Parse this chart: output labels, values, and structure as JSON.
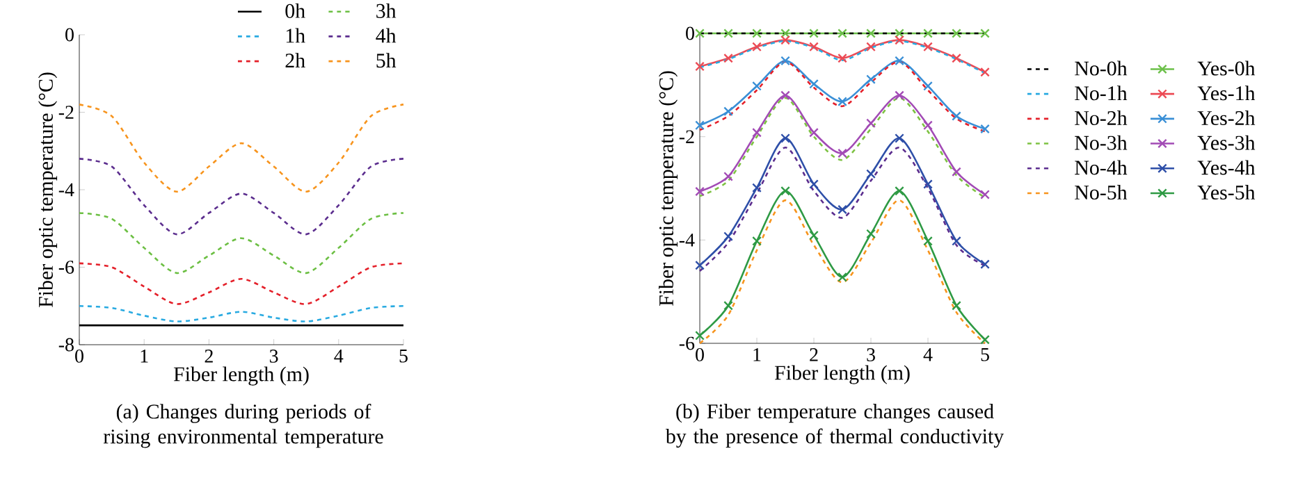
{
  "chart_data": [
    {
      "type": "line",
      "xlabel": "Fiber length (m)",
      "ylabel": "Fiber optic temperature (°C)",
      "xlim": [
        0,
        5
      ],
      "ylim": [
        -8,
        0
      ],
      "xticks": [
        0,
        1,
        2,
        3,
        4,
        5
      ],
      "yticks": [
        -8,
        -6,
        -4,
        -2,
        0
      ],
      "legend": "top right",
      "x": [
        0,
        0.5,
        1,
        1.5,
        2,
        2.5,
        3,
        3.5,
        4,
        4.5,
        5
      ],
      "series": [
        {
          "name": "0h",
          "color": "#000000",
          "line_style": "solid",
          "values": [
            -7.5,
            -7.5,
            -7.5,
            -7.5,
            -7.5,
            -7.5,
            -7.5,
            -7.5,
            -7.5,
            -7.5,
            -7.5
          ]
        },
        {
          "name": "1h",
          "color": "#29aae1",
          "line_style": "dashed",
          "values": [
            -7.0,
            -7.05,
            -7.25,
            -7.4,
            -7.3,
            -7.15,
            -7.3,
            -7.4,
            -7.25,
            -7.05,
            -7.0
          ]
        },
        {
          "name": "2h",
          "color": "#e4202a",
          "line_style": "dashed",
          "values": [
            -5.9,
            -6.0,
            -6.5,
            -6.95,
            -6.65,
            -6.3,
            -6.65,
            -6.95,
            -6.5,
            -6.0,
            -5.9
          ]
        },
        {
          "name": "3h",
          "color": "#6cbf43",
          "line_style": "dashed",
          "values": [
            -4.6,
            -4.75,
            -5.5,
            -6.15,
            -5.7,
            -5.25,
            -5.7,
            -6.15,
            -5.5,
            -4.75,
            -4.6
          ]
        },
        {
          "name": "4h",
          "color": "#5b2d8e",
          "line_style": "dashed",
          "values": [
            -3.2,
            -3.4,
            -4.4,
            -5.15,
            -4.6,
            -4.1,
            -4.6,
            -5.15,
            -4.4,
            -3.4,
            -3.2
          ]
        },
        {
          "name": "5h",
          "color": "#f7941d",
          "line_style": "dashed",
          "values": [
            -1.8,
            -2.1,
            -3.3,
            -4.05,
            -3.4,
            -2.8,
            -3.4,
            -4.05,
            -3.3,
            -2.1,
            -1.8
          ]
        }
      ],
      "annotations": [
        "(a) Changes during periods of rising environmental temperature"
      ]
    },
    {
      "type": "line",
      "xlabel": "Fiber length (m)",
      "ylabel": "Fiber optic temperature (°C)",
      "xlim": [
        0,
        5
      ],
      "ylim": [
        -6,
        0
      ],
      "xticks": [
        0,
        1,
        2,
        3,
        4,
        5
      ],
      "yticks": [
        -6,
        -4,
        -2,
        0
      ],
      "legend": "right",
      "x": [
        0,
        0.5,
        1,
        1.5,
        2,
        2.5,
        3,
        3.5,
        4,
        4.5,
        5
      ],
      "series": [
        {
          "name": "No-0h",
          "color": "#000000",
          "line_style": "dashed",
          "values": [
            0,
            0,
            0,
            0,
            0,
            0,
            0,
            0,
            0,
            0,
            0
          ]
        },
        {
          "name": "No-1h",
          "color": "#29aae1",
          "line_style": "dashed",
          "values": [
            -0.66,
            -0.5,
            -0.28,
            -0.15,
            -0.28,
            -0.52,
            -0.28,
            -0.15,
            -0.28,
            -0.5,
            -0.77
          ]
        },
        {
          "name": "No-2h",
          "color": "#e4202a",
          "line_style": "dashed",
          "values": [
            -1.87,
            -1.6,
            -1.1,
            -0.55,
            -1.05,
            -1.41,
            -0.95,
            -0.55,
            -1.1,
            -1.65,
            -1.9
          ]
        },
        {
          "name": "No-3h",
          "color": "#7dc242",
          "line_style": "dashed",
          "values": [
            -3.15,
            -2.85,
            -2.0,
            -1.25,
            -2.0,
            -2.45,
            -1.85,
            -1.25,
            -1.9,
            -2.75,
            -3.18
          ]
        },
        {
          "name": "No-4h",
          "color": "#5b2d8e",
          "line_style": "dashed",
          "values": [
            -4.6,
            -4.05,
            -3.1,
            -2.21,
            -3.05,
            -3.57,
            -2.85,
            -2.21,
            -3.0,
            -4.1,
            -4.5
          ]
        },
        {
          "name": "No-5h",
          "color": "#f7941d",
          "line_style": "dashed",
          "values": [
            -6.0,
            -5.45,
            -4.2,
            -3.23,
            -4.1,
            -4.82,
            -4.05,
            -3.23,
            -4.2,
            -5.4,
            -6.0
          ]
        },
        {
          "name": "Yes-0h",
          "color": "#6cc04a",
          "line_style": "solid",
          "marker": "cross",
          "values": [
            0,
            0,
            0,
            0,
            0,
            0,
            0,
            0,
            0,
            0,
            0
          ]
        },
        {
          "name": "Yes-1h",
          "color": "#ec4b55",
          "line_style": "solid",
          "marker": "cross",
          "values": [
            -0.64,
            -0.48,
            -0.26,
            -0.13,
            -0.26,
            -0.48,
            -0.26,
            -0.13,
            -0.26,
            -0.48,
            -0.75
          ]
        },
        {
          "name": "Yes-2h",
          "color": "#3a8fd6",
          "line_style": "solid",
          "marker": "cross",
          "values": [
            -1.78,
            -1.51,
            -1.02,
            -0.53,
            -0.98,
            -1.32,
            -0.89,
            -0.53,
            -1.02,
            -1.6,
            -1.85
          ]
        },
        {
          "name": "Yes-3h",
          "color": "#a24bb5",
          "line_style": "solid",
          "marker": "cross",
          "values": [
            -3.06,
            -2.77,
            -1.92,
            -1.2,
            -1.92,
            -2.32,
            -1.74,
            -1.2,
            -1.78,
            -2.68,
            -3.12
          ]
        },
        {
          "name": "Yes-4h",
          "color": "#2e4fa8",
          "line_style": "solid",
          "marker": "cross",
          "values": [
            -4.49,
            -3.93,
            -2.99,
            -2.03,
            -2.92,
            -3.41,
            -2.72,
            -2.03,
            -2.92,
            -4.02,
            -4.47
          ]
        },
        {
          "name": "Yes-5h",
          "color": "#2e9a44",
          "line_style": "solid",
          "marker": "cross",
          "values": [
            -5.85,
            -5.27,
            -4.02,
            -3.05,
            -3.91,
            -4.72,
            -3.88,
            -3.05,
            -4.02,
            -5.27,
            -5.93
          ]
        }
      ],
      "annotations": [
        "(b) Fiber temperature changes caused by the presence of thermal conductivity"
      ]
    }
  ]
}
